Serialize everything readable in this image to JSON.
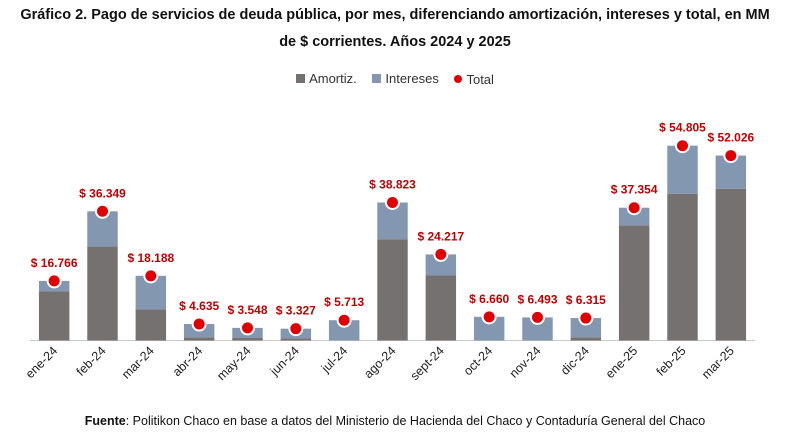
{
  "chart_data": {
    "type": "bar",
    "stacked": true,
    "title": "Gráfico 2. Pago de servicios de deuda pública, por mes, diferenciando amortización, intereses y total, en MM de $ corrientes. Años 2024 y 2025",
    "title_lines": [
      "Gráfico 2. Pago de servicios de deuda pública, por mes, diferenciando amortización, intereses y total, en MM",
      "de $ corrientes. Años 2024 y 2025"
    ],
    "categories": [
      "ene-24",
      "feb-24",
      "mar-24",
      "abr-24",
      "may-24",
      "jun-24",
      "jul-24",
      "ago-24",
      "sept-24",
      "oct-24",
      "nov-24",
      "dic-24",
      "ene-25",
      "feb-25",
      "mar-25"
    ],
    "series": [
      {
        "name": "Amortiz.",
        "color": "#767171",
        "values": [
          13.8,
          26.5,
          8.8,
          0.9,
          0.7,
          0.6,
          0,
          28.5,
          18.3,
          0,
          0,
          0.9,
          32.4,
          41.3,
          42.7
        ]
      },
      {
        "name": "Intereses",
        "color": "#8497b0",
        "values": [
          2.966,
          9.849,
          9.388,
          3.735,
          2.848,
          2.727,
          5.713,
          10.323,
          5.917,
          6.66,
          6.493,
          5.415,
          4.954,
          13.505,
          9.326
        ]
      }
    ],
    "totals": {
      "name": "Total",
      "color": "#e00000",
      "values": [
        16.766,
        36.349,
        18.188,
        4.635,
        3.548,
        3.327,
        5.713,
        38.823,
        24.217,
        6.66,
        6.493,
        6.315,
        37.354,
        54.805,
        52.026
      ],
      "labels": [
        "$ 16.766",
        "$ 36.349",
        "$ 18.188",
        "$ 4.635",
        "$ 3.548",
        "$ 3.327",
        "$ 5.713",
        "$ 38.823",
        "$ 24.217",
        "$ 6.660",
        "$ 6.493",
        "$ 6.315",
        "$ 37.354",
        "$ 54.805",
        "$ 52.026"
      ]
    },
    "ylim": [
      0,
      55
    ],
    "grid": false,
    "legend": "top-center",
    "xlabel": "",
    "ylabel": ""
  },
  "source": {
    "label": "Fuente",
    "text": ": Politikon Chaco en base a datos del Ministerio de Hacienda del Chaco y Contaduría General del Chaco"
  }
}
